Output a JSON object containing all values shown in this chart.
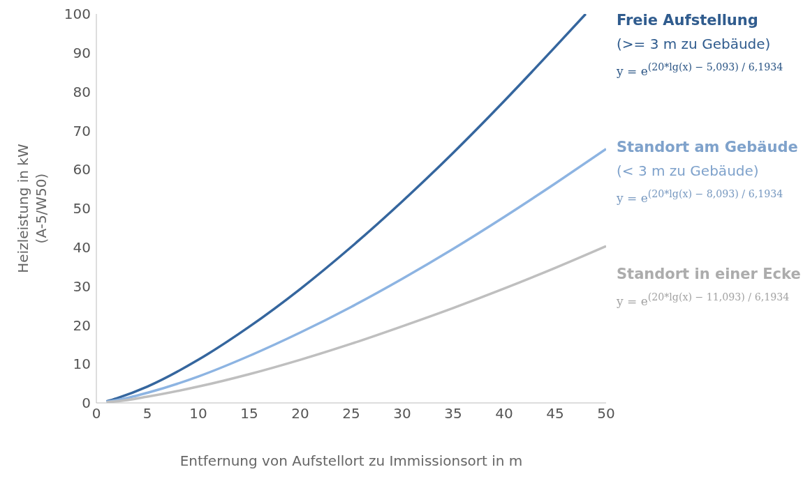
{
  "chart_data": {
    "type": "line",
    "xlabel": "Entfernung von Aufstellort zu Immissionsort in m",
    "ylabel": "Heizleistung in kW\n(A-5/W50)",
    "xlim": [
      0,
      50
    ],
    "xticks": [
      0,
      5,
      10,
      15,
      20,
      25,
      30,
      35,
      40,
      45,
      50
    ],
    "ylim": [
      0,
      100
    ],
    "yticks": [
      0,
      10,
      20,
      30,
      40,
      50,
      60,
      70,
      80,
      90,
      100
    ],
    "grid": false,
    "legend": "right",
    "marker": "none",
    "line_style": "solid",
    "series": [
      {
        "name": "Freie Aufstellung",
        "color": "#35669e",
        "x": [
          1,
          2,
          5,
          10,
          15,
          20,
          25,
          30,
          35,
          40,
          45,
          48
        ],
        "values": [
          0.4,
          1.2,
          4.2,
          11.1,
          19.6,
          29.3,
          40.1,
          51.8,
          64.3,
          77.6,
          91.5,
          100
        ]
      },
      {
        "name": "Standort am Gebäude",
        "color": "#8db4e2",
        "x": [
          1,
          2,
          5,
          10,
          15,
          20,
          25,
          30,
          35,
          40,
          45,
          50
        ],
        "values": [
          0.3,
          0.7,
          2.6,
          6.8,
          12.1,
          18.1,
          24.7,
          31.9,
          39.6,
          47.8,
          56.4,
          65.3
        ]
      },
      {
        "name": "Standort in einer Ecke",
        "color": "#bfbfbf",
        "x": [
          1,
          2,
          5,
          10,
          15,
          20,
          25,
          30,
          35,
          40,
          45,
          50
        ],
        "values": [
          0.2,
          0.4,
          1.6,
          4.2,
          7.4,
          11.1,
          15.2,
          19.7,
          24.4,
          29.4,
          34.7,
          40.3
        ]
      }
    ],
    "annotations": [
      "(>= 3 m zu Gebäude)",
      "y = e$^{(20*lg(x) − 5,093) / 6,1934}$",
      "(< 3 m zu Gebäude)",
      "y = e$^{(20*lg(x) − 8,093) / 6,1934}$",
      "y = e$^{(20*lg(x) − 11,093) / 6,1934}$"
    ]
  }
}
